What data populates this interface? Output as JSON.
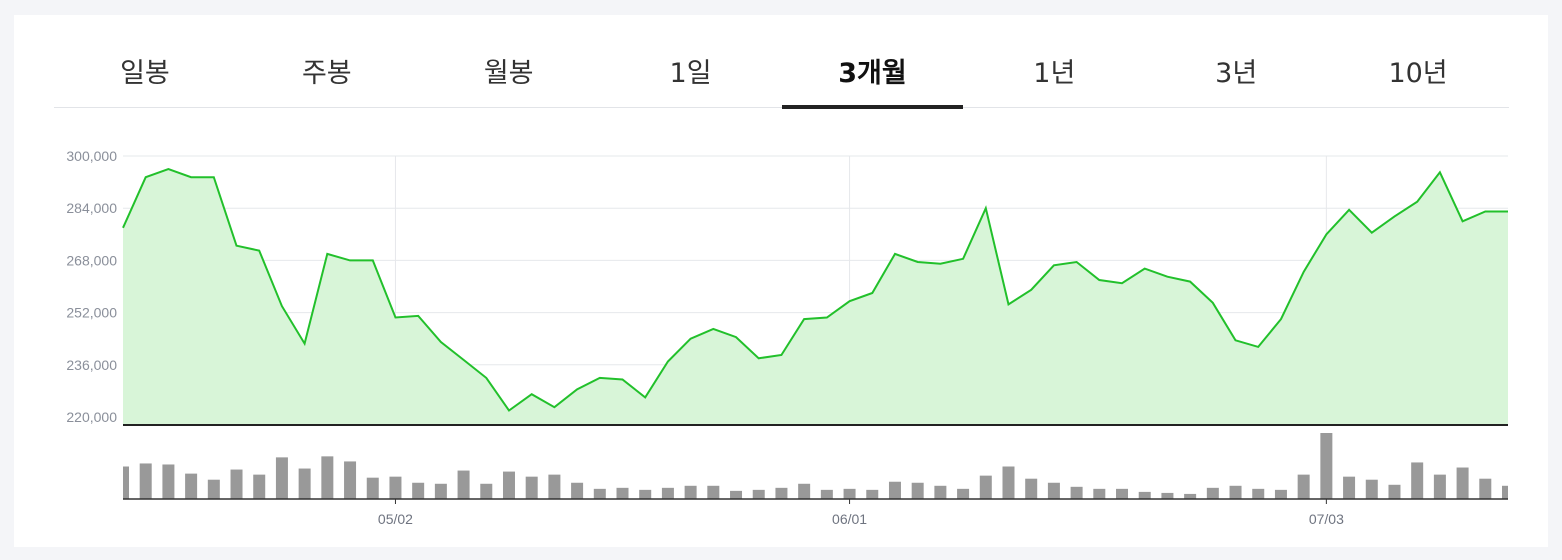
{
  "tabs": [
    {
      "label": "일봉",
      "active": false
    },
    {
      "label": "주봉",
      "active": false
    },
    {
      "label": "월봉",
      "active": false
    },
    {
      "label": "1일",
      "active": false
    },
    {
      "label": "3개월",
      "active": true
    },
    {
      "label": "1년",
      "active": false
    },
    {
      "label": "3년",
      "active": false
    },
    {
      "label": "10년",
      "active": false
    }
  ],
  "chart_data": {
    "type": "area",
    "title": "",
    "ylim": [
      220000,
      300000
    ],
    "yticks": [
      {
        "value": 300000,
        "label": "300,000"
      },
      {
        "value": 284000,
        "label": "284,000"
      },
      {
        "value": 268000,
        "label": "268,000"
      },
      {
        "value": 252000,
        "label": "252,000"
      },
      {
        "value": 236000,
        "label": "236,000"
      },
      {
        "value": 220000,
        "label": "220,000"
      }
    ],
    "xticks": [
      {
        "index": 12,
        "label": "05/02"
      },
      {
        "index": 32,
        "label": "06/01"
      },
      {
        "index": 53,
        "label": "07/03"
      }
    ],
    "grid": true,
    "line_color": "#22c02b",
    "fill_color": "#d8f5d8",
    "volume_color": "#999999",
    "values": [
      278000,
      293500,
      296000,
      293500,
      293500,
      272500,
      271000,
      254000,
      242500,
      270000,
      268000,
      268000,
      250500,
      251000,
      243000,
      237500,
      232000,
      222000,
      227000,
      223000,
      228500,
      232000,
      231500,
      226000,
      237000,
      244000,
      247000,
      244500,
      238000,
      239000,
      250000,
      250500,
      255500,
      258000,
      270000,
      267500,
      267000,
      268500,
      284000,
      254500,
      259000,
      266500,
      267500,
      262000,
      261000,
      265500,
      263000,
      261500,
      255000,
      243500,
      241500,
      250000,
      264500,
      276000,
      283500,
      276500,
      281500,
      286000,
      295000,
      280000,
      283000,
      283000
    ],
    "volume": [
      32,
      35,
      34,
      25,
      19,
      29,
      24,
      41,
      30,
      42,
      37,
      21,
      22,
      16,
      15,
      28,
      15,
      27,
      22,
      24,
      16,
      10,
      11,
      9,
      11,
      13,
      13,
      8,
      9,
      11,
      15,
      9,
      10,
      9,
      17,
      16,
      13,
      10,
      23,
      32,
      20,
      16,
      12,
      10,
      10,
      7,
      6,
      5,
      11,
      13,
      10,
      9,
      24,
      65,
      22,
      19,
      14,
      36,
      24,
      31,
      20,
      13
    ]
  }
}
